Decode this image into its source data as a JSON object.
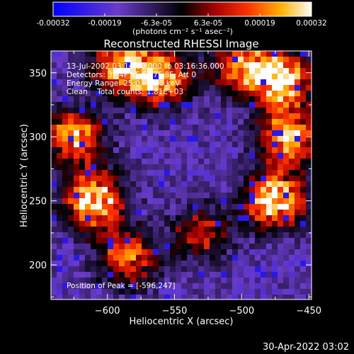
{
  "colorbar": {
    "tick_labels": [
      "-0.00032",
      "-0.00019",
      "-6.3e-05",
      "6.3e-05",
      "0.00019",
      "0.00032"
    ],
    "units_label": "(photons cm⁻² s⁻¹ asec⁻²)"
  },
  "chart_data": {
    "type": "heatmap",
    "title": "Reconstructed RHESSI Image",
    "xlabel": "Heliocentric X (arcsec)",
    "ylabel": "Heliocentric Y (arcsec)",
    "xlim": [
      -642,
      -448
    ],
    "ylim": [
      173,
      367
    ],
    "x_ticks": [
      -600,
      -550,
      -500,
      -450
    ],
    "x_tick_labels": [
      "−600",
      "−550",
      "−500",
      "−450"
    ],
    "y_ticks": [
      200,
      250,
      300,
      350
    ],
    "y_tick_labels": [
      "200",
      "250",
      "300",
      "350"
    ],
    "color_range": [
      -0.00032,
      0.00032
    ],
    "peak_position": [
      -596,
      247
    ],
    "bright_regions": [
      {
        "x": -610,
        "y": 250,
        "level": 0.85
      },
      {
        "x": -625,
        "y": 300,
        "level": 0.7
      },
      {
        "x": -585,
        "y": 205,
        "level": 0.6
      },
      {
        "x": -560,
        "y": 345,
        "level": 0.75
      },
      {
        "x": -590,
        "y": 355,
        "level": 0.7
      },
      {
        "x": -470,
        "y": 345,
        "level": 0.85
      },
      {
        "x": -465,
        "y": 300,
        "level": 0.75
      },
      {
        "x": -475,
        "y": 250,
        "level": 0.85
      },
      {
        "x": -500,
        "y": 355,
        "level": 0.6
      },
      {
        "x": -530,
        "y": 225,
        "level": 0.45
      }
    ],
    "annotations": [
      "13-Jul-2002 03:14:00.000 to 03:16:36.000",
      "Detectors: 3F 4F 5F 6F 7F 8F, Att 0",
      "Energy Range: 25.0 - 50.0 keV",
      "Clean    Total counts: 1.81E+03"
    ],
    "peak_label": "Position of Peak = [-596,247]"
  },
  "footer": {
    "timestamp": "30-Apr-2022 03:02"
  }
}
